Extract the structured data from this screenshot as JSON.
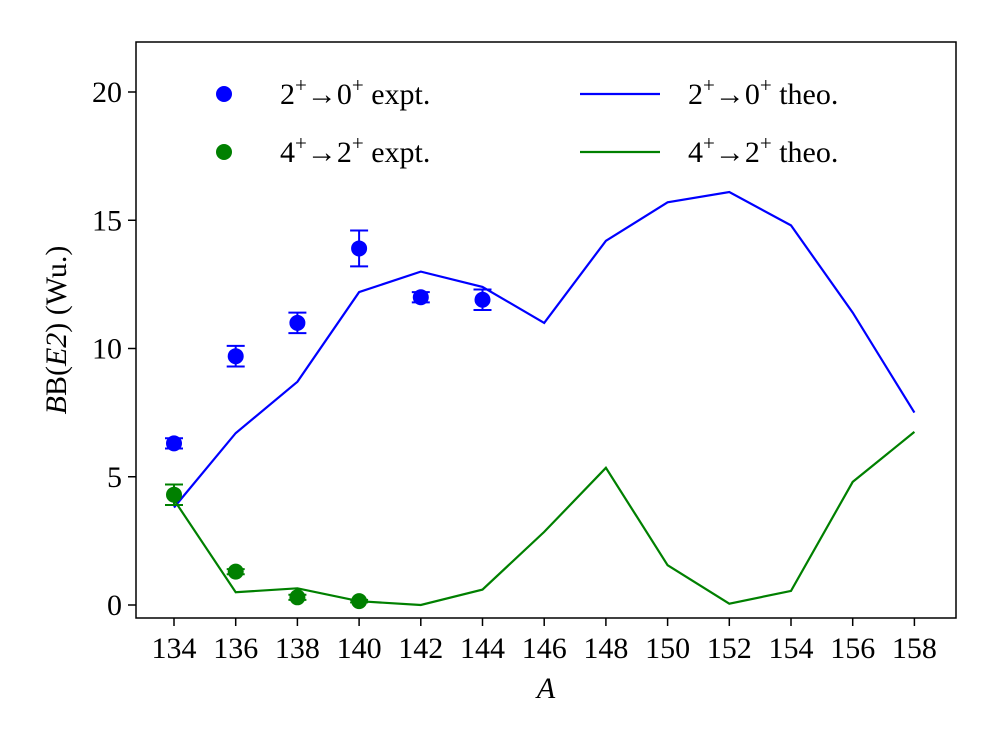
{
  "chart_data": {
    "type": "line",
    "xlabel": "A",
    "ylabel_parts": [
      "B(",
      "E2",
      ") (Wu.)"
    ],
    "xlim": [
      133,
      159
    ],
    "ylim": [
      -0.5,
      22
    ],
    "x_ticks": [
      134,
      136,
      138,
      140,
      142,
      144,
      146,
      148,
      150,
      152,
      154,
      156,
      158
    ],
    "y_ticks": [
      0,
      5,
      10,
      15,
      20
    ],
    "grid": false,
    "legend": {
      "placement": "top",
      "columns": 2,
      "entries": [
        {
          "base": [
            "2",
            "0"
          ],
          "suffix": "expt.",
          "kind": "marker",
          "color": "#0000ff"
        },
        {
          "base": [
            "4",
            "2"
          ],
          "suffix": "expt.",
          "kind": "marker",
          "color": "#008000"
        },
        {
          "base": [
            "2",
            "0"
          ],
          "suffix": "theo.",
          "kind": "line",
          "color": "#0000ff"
        },
        {
          "base": [
            "4",
            "2"
          ],
          "suffix": "theo.",
          "kind": "line",
          "color": "#008000"
        }
      ]
    },
    "series": [
      {
        "kind": "scatter-errorbar",
        "color": "#0000ff",
        "x": [
          134,
          136,
          138,
          140,
          142,
          144
        ],
        "y": [
          6.3,
          9.7,
          11.0,
          13.9,
          12.0,
          11.9
        ],
        "err": [
          0.2,
          0.4,
          0.4,
          0.7,
          0.2,
          0.4
        ]
      },
      {
        "kind": "scatter-errorbar",
        "color": "#008000",
        "x": [
          134,
          136,
          138,
          140
        ],
        "y": [
          4.3,
          1.3,
          0.3,
          0.15
        ],
        "err": [
          0.4,
          0.1,
          0.1,
          0.05
        ]
      },
      {
        "kind": "line",
        "color": "#0000ff",
        "x": [
          134,
          136,
          138,
          140,
          142,
          144,
          146,
          148,
          150,
          152,
          154,
          156,
          158
        ],
        "y": [
          3.8,
          6.7,
          8.7,
          12.2,
          13.0,
          12.4,
          11.0,
          14.2,
          15.7,
          16.1,
          14.8,
          11.4,
          7.5
        ]
      },
      {
        "kind": "line",
        "color": "#008000",
        "x": [
          134,
          136,
          138,
          140,
          142,
          144,
          146,
          148,
          150,
          152,
          154,
          156,
          158
        ],
        "y": [
          4.1,
          0.5,
          0.65,
          0.15,
          0.0,
          0.6,
          2.85,
          5.35,
          1.55,
          0.05,
          0.55,
          4.8,
          6.75
        ]
      }
    ]
  }
}
